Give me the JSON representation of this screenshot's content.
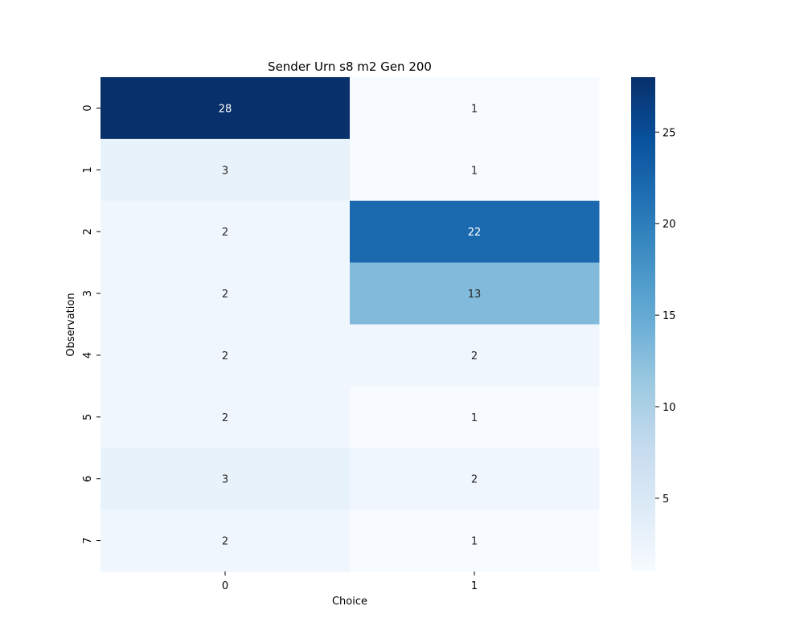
{
  "chart_data": {
    "type": "heatmap",
    "title": "Sender Urn s8 m2 Gen 200",
    "xlabel": "Choice",
    "ylabel": "Observation",
    "x_categories": [
      "0",
      "1"
    ],
    "y_categories": [
      "0",
      "1",
      "2",
      "3",
      "4",
      "5",
      "6",
      "7"
    ],
    "values": [
      [
        28,
        1
      ],
      [
        3,
        1
      ],
      [
        2,
        22
      ],
      [
        2,
        13
      ],
      [
        2,
        2
      ],
      [
        2,
        1
      ],
      [
        3,
        2
      ],
      [
        2,
        1
      ]
    ],
    "colorbar": {
      "range": [
        1,
        28
      ],
      "ticks": [
        "5",
        "10",
        "15",
        "20",
        "25"
      ],
      "colormap": "Blues",
      "low_color": "#f7fbff",
      "high_color": "#08306b"
    }
  }
}
